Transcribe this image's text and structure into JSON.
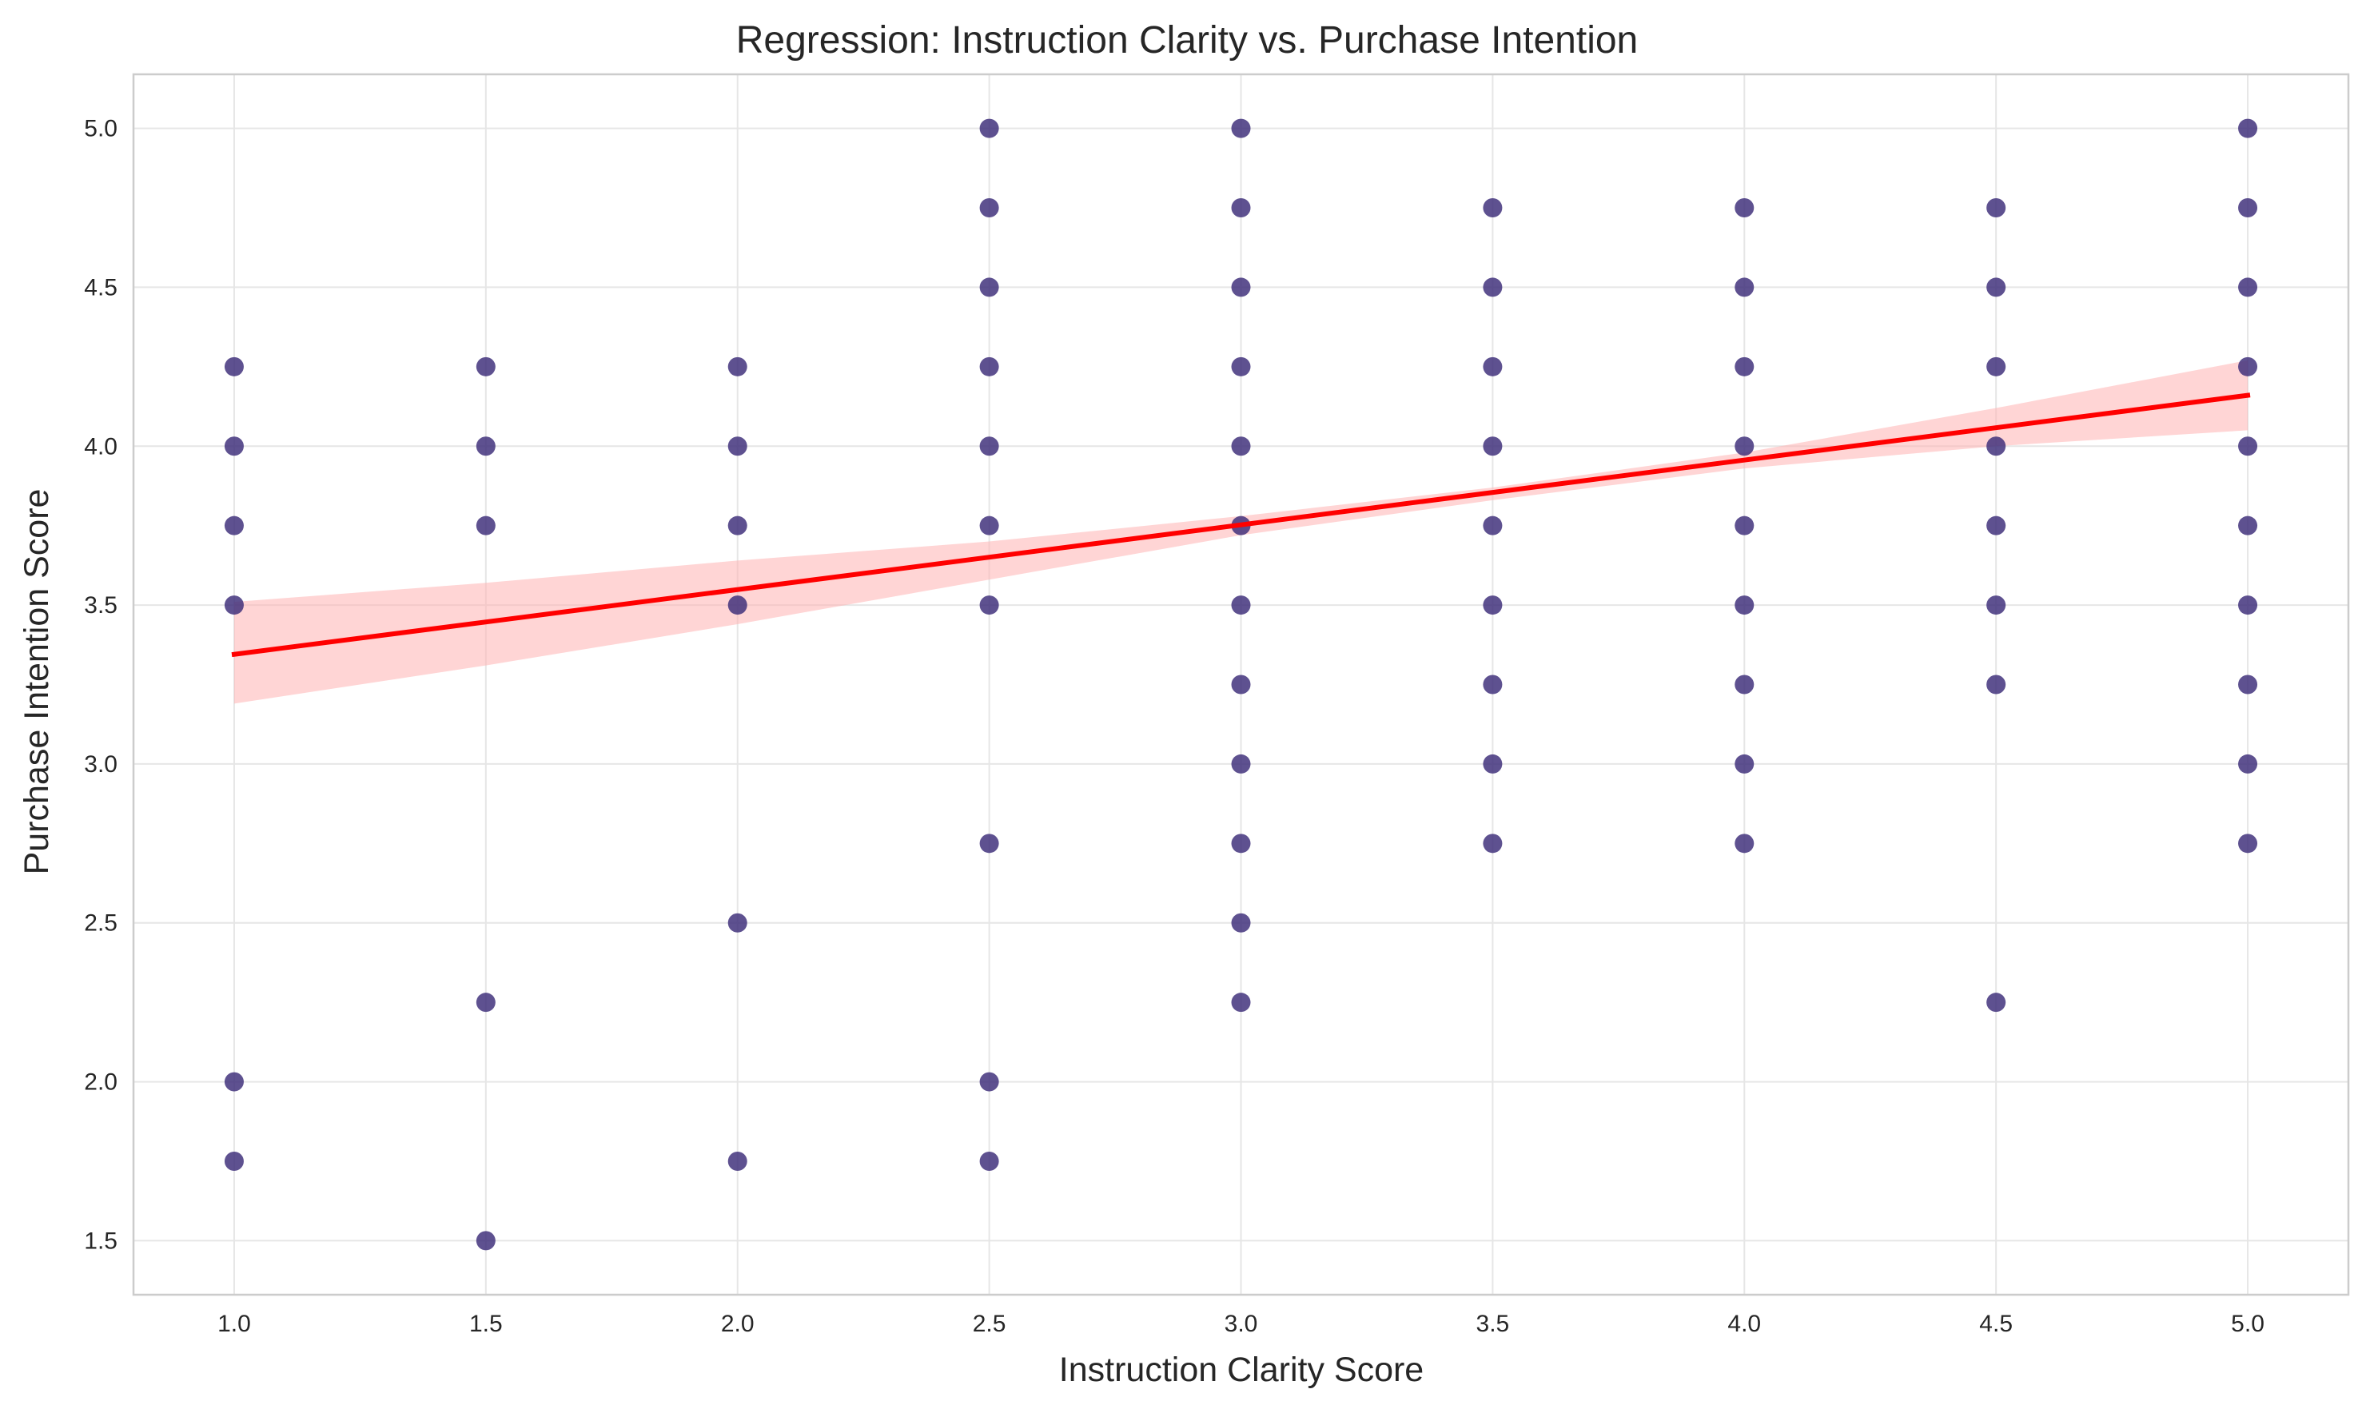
{
  "chart_data": {
    "type": "scatter",
    "title": "Regression: Instruction Clarity vs. Purchase Intention",
    "xlabel": "Instruction Clarity Score",
    "ylabel": "Purchase Intention Score",
    "xlim": [
      0.8,
      5.2
    ],
    "ylim": [
      1.33,
      5.17
    ],
    "x_ticks": [
      "1.0",
      "1.5",
      "2.0",
      "2.5",
      "3.0",
      "3.5",
      "4.0",
      "4.5",
      "5.0"
    ],
    "y_ticks": [
      "1.5",
      "2.0",
      "2.5",
      "3.0",
      "3.5",
      "4.0",
      "4.5",
      "5.0"
    ],
    "grid": true,
    "colors": {
      "points": "#3b2b78",
      "regression_line": "#ff0000",
      "confidence_band": "#ffb3b3",
      "grid": "#e6e6e6",
      "spine": "#cccccc"
    },
    "series": [
      {
        "points": [
          [
            1.0,
            4.25
          ],
          [
            1.0,
            4.0
          ],
          [
            1.0,
            3.75
          ],
          [
            1.0,
            3.5
          ],
          [
            1.0,
            2.0
          ],
          [
            1.0,
            1.75
          ],
          [
            1.5,
            4.25
          ],
          [
            1.5,
            4.0
          ],
          [
            1.5,
            3.75
          ],
          [
            1.5,
            2.25
          ],
          [
            1.5,
            1.5
          ],
          [
            2.0,
            4.25
          ],
          [
            2.0,
            4.0
          ],
          [
            2.0,
            3.75
          ],
          [
            2.0,
            3.5
          ],
          [
            2.0,
            2.5
          ],
          [
            2.0,
            1.75
          ],
          [
            2.5,
            5.0
          ],
          [
            2.5,
            4.75
          ],
          [
            2.5,
            4.5
          ],
          [
            2.5,
            4.25
          ],
          [
            2.5,
            4.0
          ],
          [
            2.5,
            3.75
          ],
          [
            2.5,
            3.5
          ],
          [
            2.5,
            2.75
          ],
          [
            2.5,
            2.0
          ],
          [
            2.5,
            1.75
          ],
          [
            3.0,
            5.0
          ],
          [
            3.0,
            4.75
          ],
          [
            3.0,
            4.5
          ],
          [
            3.0,
            4.25
          ],
          [
            3.0,
            4.0
          ],
          [
            3.0,
            3.75
          ],
          [
            3.0,
            3.5
          ],
          [
            3.0,
            3.25
          ],
          [
            3.0,
            3.0
          ],
          [
            3.0,
            2.75
          ],
          [
            3.0,
            2.5
          ],
          [
            3.0,
            2.25
          ],
          [
            3.5,
            4.75
          ],
          [
            3.5,
            4.5
          ],
          [
            3.5,
            4.25
          ],
          [
            3.5,
            4.0
          ],
          [
            3.5,
            3.75
          ],
          [
            3.5,
            3.5
          ],
          [
            3.5,
            3.25
          ],
          [
            3.5,
            3.0
          ],
          [
            3.5,
            2.75
          ],
          [
            4.0,
            4.75
          ],
          [
            4.0,
            4.5
          ],
          [
            4.0,
            4.25
          ],
          [
            4.0,
            4.0
          ],
          [
            4.0,
            3.75
          ],
          [
            4.0,
            3.5
          ],
          [
            4.0,
            3.25
          ],
          [
            4.0,
            3.0
          ],
          [
            4.0,
            2.75
          ],
          [
            4.5,
            4.75
          ],
          [
            4.5,
            4.5
          ],
          [
            4.5,
            4.25
          ],
          [
            4.5,
            4.0
          ],
          [
            4.5,
            3.75
          ],
          [
            4.5,
            3.5
          ],
          [
            4.5,
            3.25
          ],
          [
            4.5,
            2.25
          ],
          [
            5.0,
            5.0
          ],
          [
            5.0,
            4.75
          ],
          [
            5.0,
            4.5
          ],
          [
            5.0,
            4.25
          ],
          [
            5.0,
            4.0
          ],
          [
            5.0,
            3.75
          ],
          [
            5.0,
            3.5
          ],
          [
            5.0,
            3.25
          ],
          [
            5.0,
            3.0
          ],
          [
            5.0,
            2.75
          ]
        ]
      }
    ],
    "regression": {
      "x": [
        1.0,
        5.0
      ],
      "y": [
        3.345,
        4.16
      ]
    },
    "confidence_band": {
      "x": [
        1.0,
        1.5,
        2.0,
        2.5,
        3.0,
        3.5,
        4.0,
        4.5,
        5.0
      ],
      "upper": [
        3.51,
        3.57,
        3.64,
        3.7,
        3.78,
        3.87,
        3.98,
        4.12,
        4.27
      ],
      "lower": [
        3.19,
        3.31,
        3.44,
        3.58,
        3.72,
        3.83,
        3.93,
        4.0,
        4.05
      ]
    }
  }
}
